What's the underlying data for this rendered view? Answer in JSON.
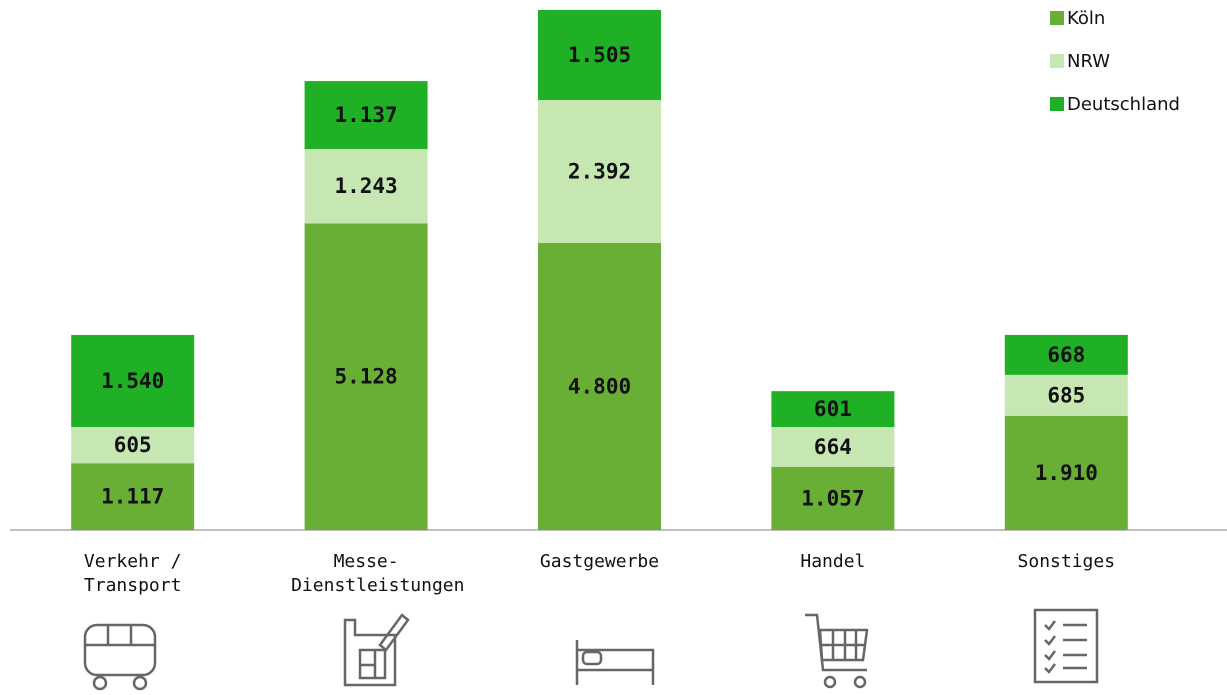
{
  "chart_data": {
    "type": "bar",
    "stacked": true,
    "categories": [
      "Verkehr / Transport",
      "Messe-Dienstleistungen",
      "Gastgewerbe",
      "Handel",
      "Sonstiges"
    ],
    "series": [
      {
        "name": "Köln",
        "color": "#6aaf35",
        "values": [
          1117,
          5128,
          4800,
          1057,
          1910
        ],
        "value_labels": [
          "1.117",
          "5.128",
          "4.800",
          "1.057",
          "1.910"
        ]
      },
      {
        "name": "NRW",
        "color": "#c6e7b1",
        "values": [
          605,
          1243,
          2392,
          664,
          685
        ],
        "value_labels": [
          "605",
          "1.243",
          "2.392",
          "664",
          "685"
        ]
      },
      {
        "name": "Deutschland",
        "color": "#1fb026",
        "values": [
          1540,
          1137,
          1505,
          601,
          668
        ],
        "value_labels": [
          "1.540",
          "1.137",
          "1.505",
          "601",
          "668"
        ]
      }
    ],
    "legend": "top-right"
  }
}
